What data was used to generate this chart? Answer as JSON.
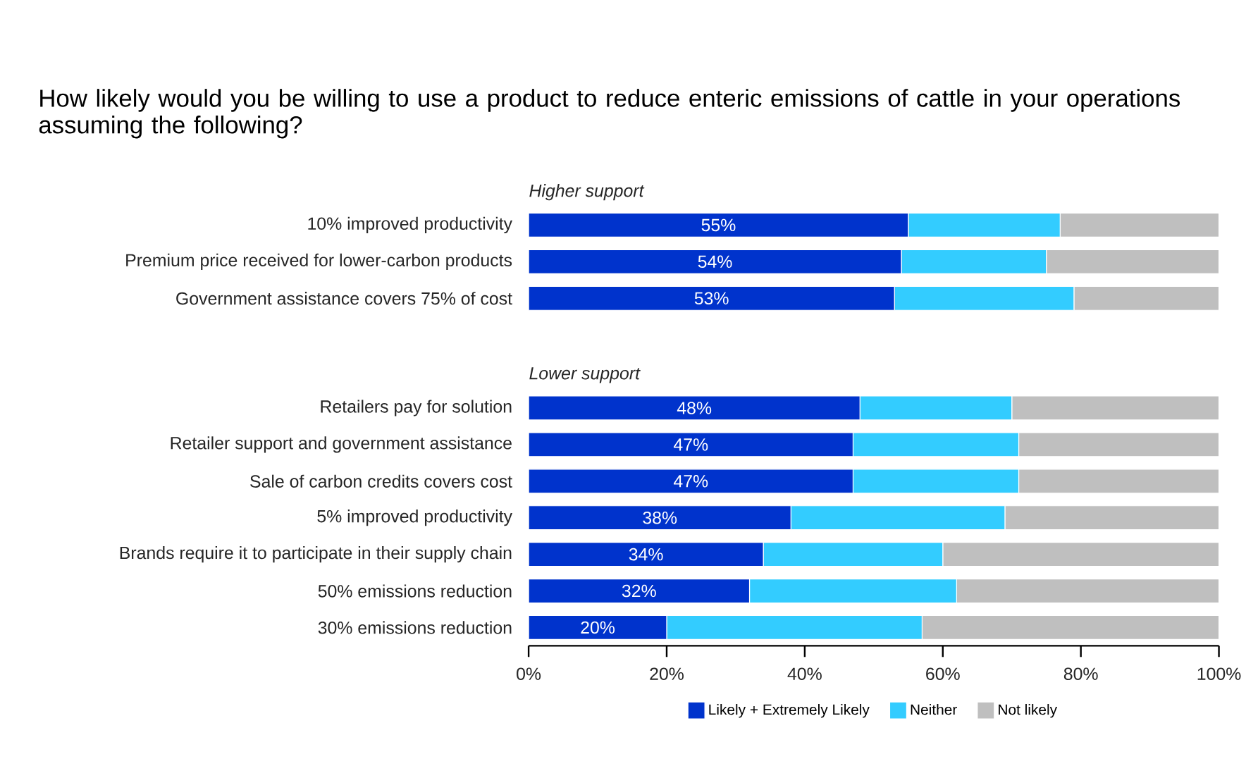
{
  "chart_data": {
    "type": "bar",
    "orientation": "horizontal",
    "stacked": true,
    "title": "How likely would you be willing to use a product to reduce enteric emissions of cattle in your operations assuming the following?",
    "annotations": [
      "Higher support",
      "Lower support"
    ],
    "categories": [
      "10% improved productivity",
      "Premium price received for lower-carbon products",
      "Government assistance covers 75% of cost",
      null,
      null,
      "Retailers pay for solution",
      "Retailer support and government assistance",
      "Sale of carbon credits covers cost",
      "5% improved productivity",
      "Brands require it to participate in their supply chain",
      "50% emissions reduction",
      "30% emissions reduction"
    ],
    "series": [
      {
        "name": "Likely + Extremely Likely",
        "color": "#0033cc",
        "values": [
          55,
          54,
          53,
          null,
          null,
          48,
          47,
          47,
          38,
          34,
          32,
          20
        ],
        "value_labels": [
          "55%",
          "54%",
          "53%",
          null,
          null,
          "48%",
          "47%",
          "47%",
          "38%",
          "34%",
          "32%",
          "20%"
        ]
      },
      {
        "name": "Neither",
        "color": "#33ccff",
        "values": [
          22,
          21,
          26,
          null,
          null,
          22,
          24,
          24,
          31,
          26,
          30,
          37
        ]
      },
      {
        "name": "Not likely",
        "color": "#bfbfbf",
        "values": [
          23,
          25,
          21,
          null,
          null,
          30,
          29,
          29,
          31,
          40,
          38,
          43
        ]
      }
    ],
    "xlim": [
      0,
      100
    ],
    "xticks": [
      {
        "value": 0,
        "label": "0%"
      },
      {
        "value": 20,
        "label": "20%"
      },
      {
        "value": 40,
        "label": "40%"
      },
      {
        "value": 60,
        "label": "60%"
      },
      {
        "value": 80,
        "label": "80%"
      },
      {
        "value": 100,
        "label": "100%"
      }
    ],
    "legend": "bottom"
  }
}
